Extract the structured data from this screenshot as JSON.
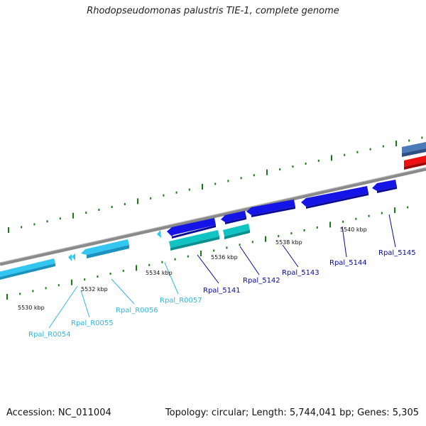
{
  "title": "Rhodopseudomonas palustris TIE-1, complete genome",
  "footer": {
    "accession": "Accession: NC_011004",
    "summary": "Topology: circular; Length: 5,744,041 bp; Genes: 5,305"
  },
  "colors": {
    "backbone": "#8a8a8a",
    "tick_mark": "#1a7a1a",
    "rna_feature": "#33c6f0",
    "rna_label": "#33b6e0",
    "cds_feature": "#1414e6",
    "cds_label": "#0a0aa0",
    "alt_feature": "#10c4c4",
    "steel_feature": "#4a7ab8",
    "red_feature": "#ee1111"
  },
  "tick_labels": [
    "5530 kbp",
    "5532 kbp",
    "5534 kbp",
    "5536 kbp",
    "5538 kbp",
    "5540 kbp"
  ],
  "gene_labels": [
    {
      "text": "Rpal_R0054",
      "kind": "rna"
    },
    {
      "text": "Rpal_R0055",
      "kind": "rna"
    },
    {
      "text": "Rpal_R0056",
      "kind": "rna"
    },
    {
      "text": "Rpal_R0057",
      "kind": "rna"
    },
    {
      "text": "Rpal_5141",
      "kind": "cds"
    },
    {
      "text": "Rpal_5142",
      "kind": "cds"
    },
    {
      "text": "Rpal_5143",
      "kind": "cds"
    },
    {
      "text": "Rpal_5144",
      "kind": "cds"
    },
    {
      "text": "Rpal_5145",
      "kind": "cds"
    }
  ]
}
